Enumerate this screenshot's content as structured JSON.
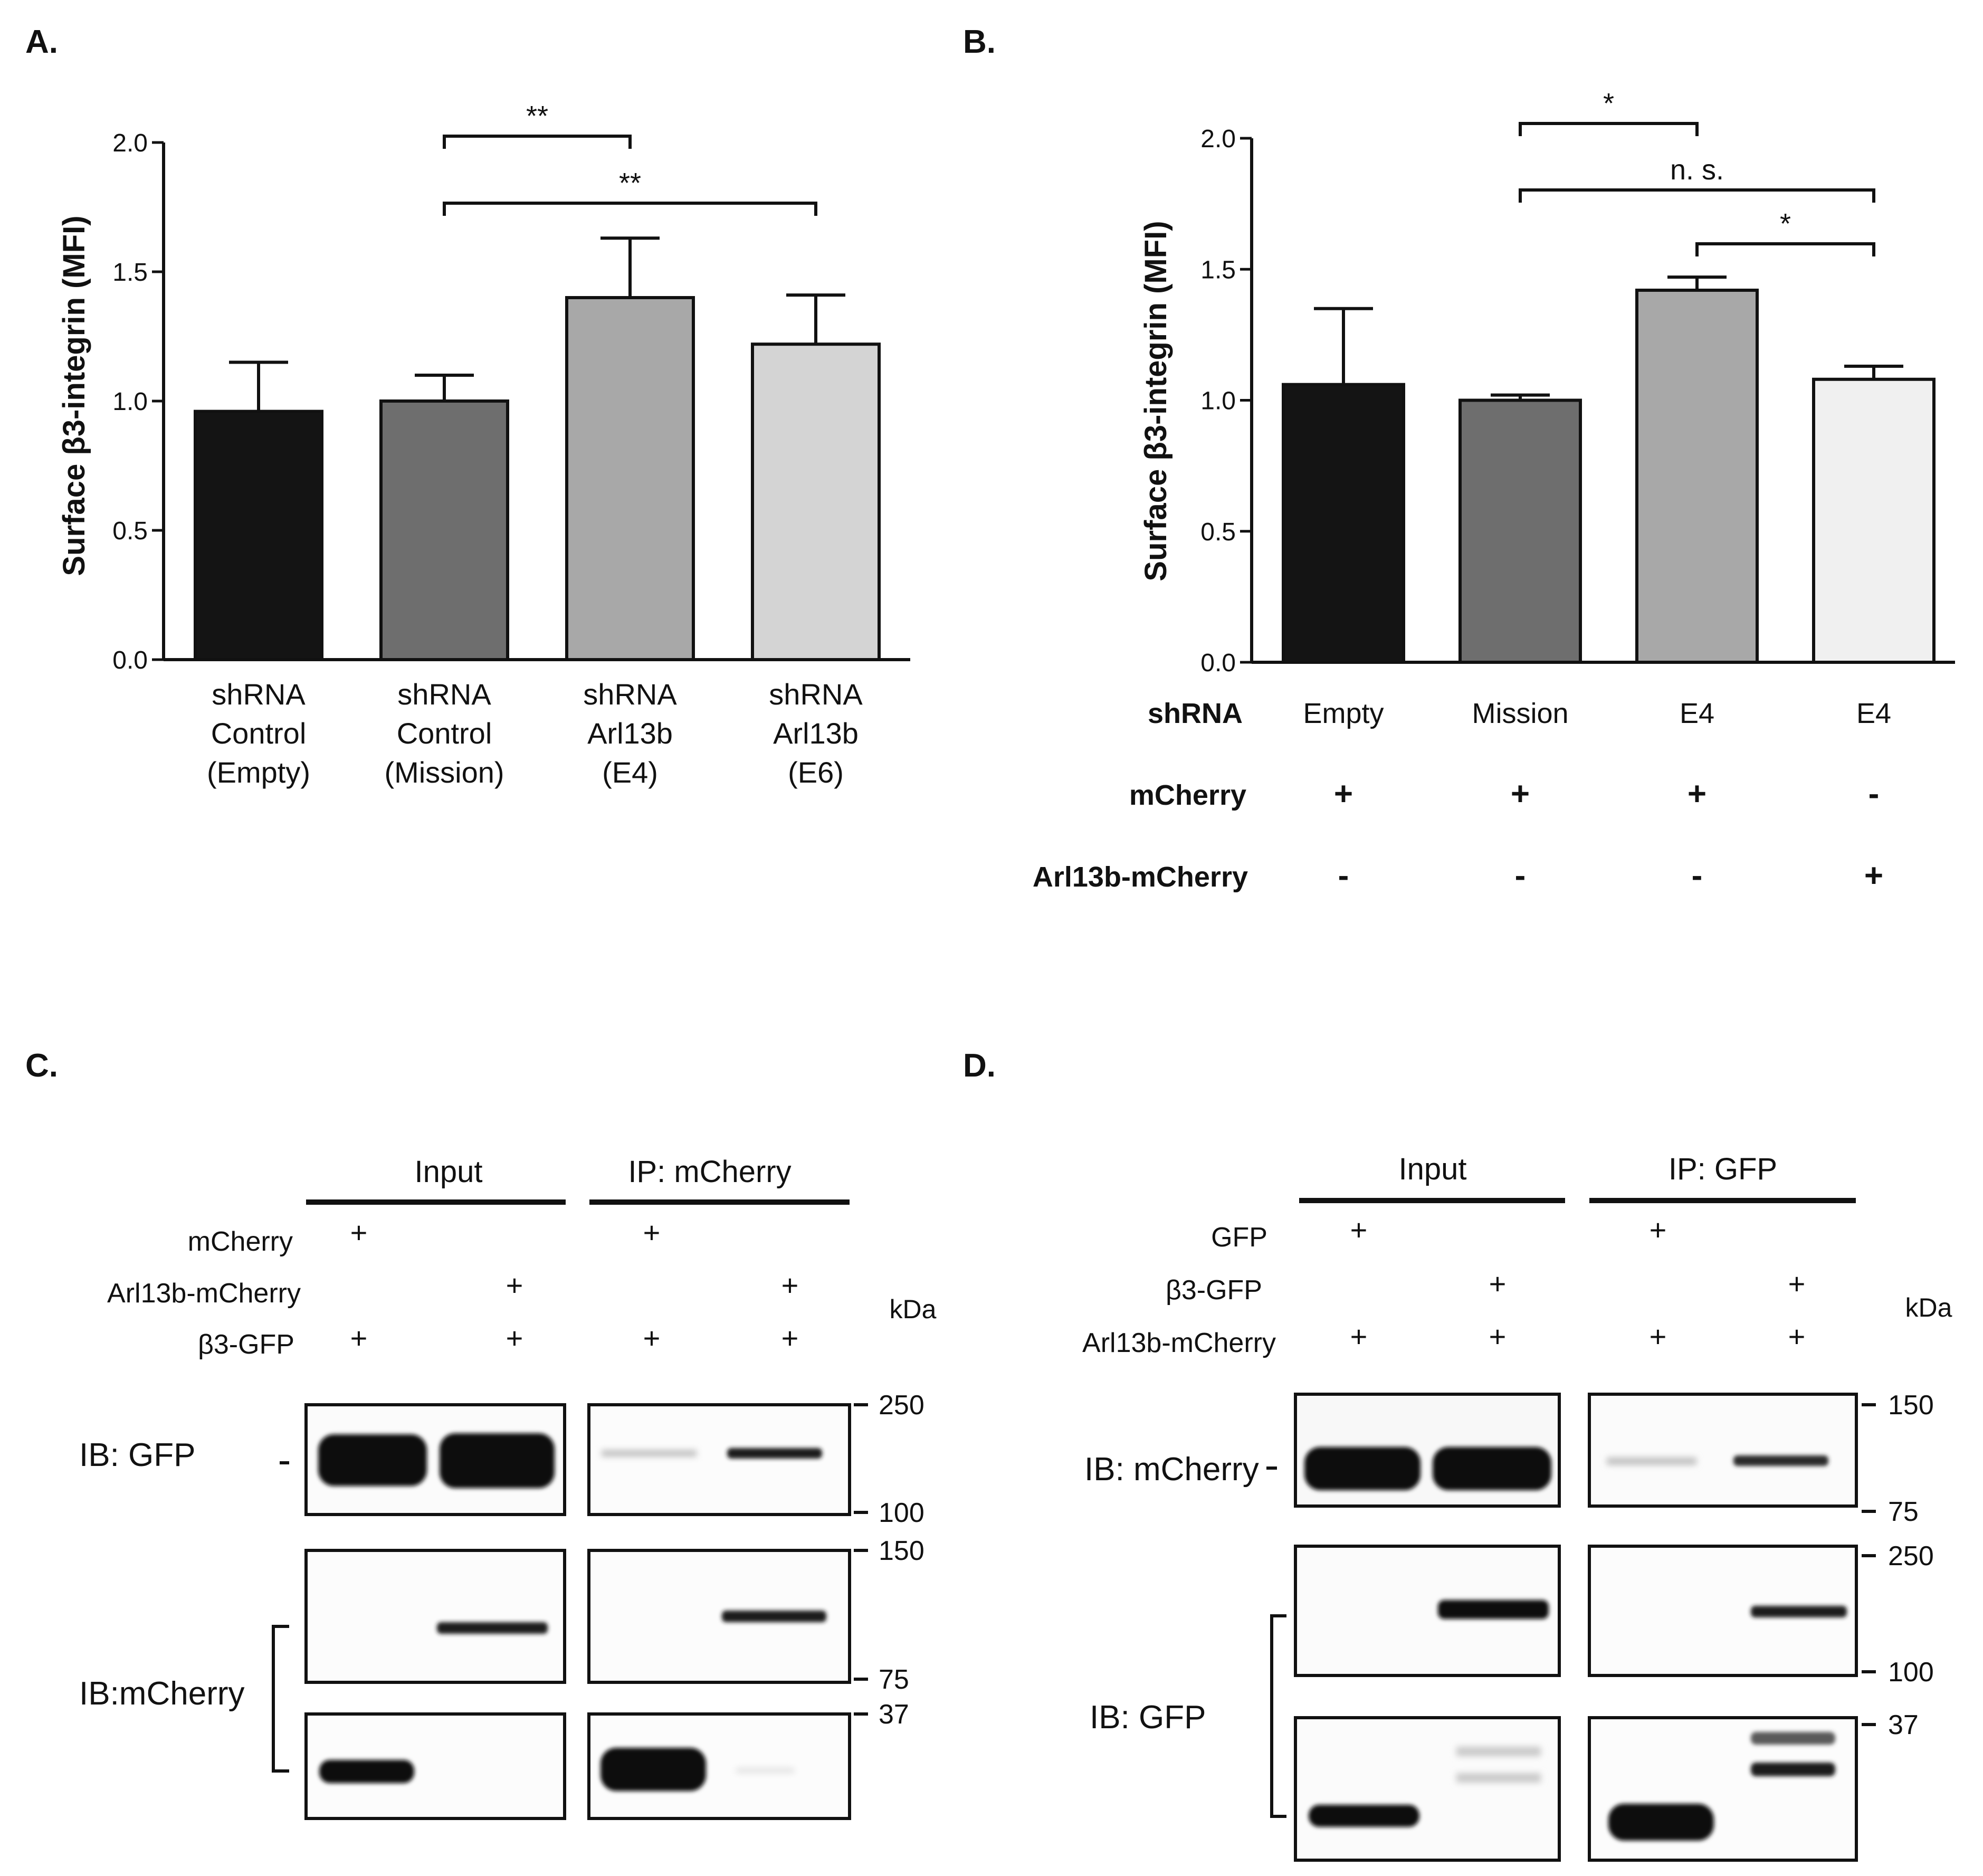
{
  "panels": {
    "A": {
      "letter": "A."
    },
    "B": {
      "letter": "B."
    },
    "C": {
      "letter": "C."
    },
    "D": {
      "letter": "D."
    }
  },
  "chart_data": [
    {
      "panel": "A",
      "type": "bar",
      "ylabel": "Surface β3-integrin (MFI)",
      "ylim": [
        0,
        2.0
      ],
      "yticks": [
        "0.0",
        "0.5",
        "1.0",
        "1.5",
        "2.0"
      ],
      "categories": [
        [
          "shRNA",
          "Control",
          "(Empty)"
        ],
        [
          "shRNA",
          "Control",
          "(Mission)"
        ],
        [
          "shRNA",
          "Arl13b",
          "(E4)"
        ],
        [
          "shRNA",
          "Arl13b",
          "(E6)"
        ]
      ],
      "values": [
        0.96,
        1.0,
        1.4,
        1.22
      ],
      "errors": [
        0.19,
        0.1,
        0.23,
        0.19
      ],
      "bar_colors": [
        "#141414",
        "#6e6e6e",
        "#a8a8a8",
        "#d4d4d4"
      ],
      "significance": [
        {
          "from": 1,
          "to": 2,
          "label": "**"
        },
        {
          "from": 1,
          "to": 3,
          "label": "**"
        }
      ]
    },
    {
      "panel": "B",
      "type": "bar",
      "ylabel": "Surface β3-integrin (MFI)",
      "ylim": [
        0,
        2.0
      ],
      "yticks": [
        "0.0",
        "0.5",
        "1.0",
        "1.5",
        "2.0"
      ],
      "values": [
        1.06,
        1.0,
        1.42,
        1.08
      ],
      "errors": [
        0.29,
        0.02,
        0.05,
        0.05
      ],
      "bar_colors": [
        "#141414",
        "#6e6e6e",
        "#a8a8a8",
        "#f0f0f0"
      ],
      "significance": [
        {
          "from": 1,
          "to": 2,
          "label": "*"
        },
        {
          "from": 1,
          "to": 3,
          "label": "n. s."
        },
        {
          "from": 2,
          "to": 3,
          "label": "*"
        }
      ],
      "condition_table": [
        {
          "label": "shRNA",
          "values": [
            "Empty",
            "Mission",
            "E4",
            "E4"
          ],
          "bold_values": false
        },
        {
          "label": "mCherry",
          "values": [
            "+",
            "+",
            "+",
            "-"
          ],
          "bold_values": true
        },
        {
          "label": "Arl13b-mCherry",
          "values": [
            "-",
            "-",
            "-",
            "+"
          ],
          "bold_values": true
        }
      ]
    }
  ],
  "blot_C": {
    "groups": [
      "Input",
      "IP: mCherry"
    ],
    "kda": "kDa",
    "conditions": [
      {
        "label": "mCherry",
        "values": [
          "+",
          "",
          "+",
          ""
        ]
      },
      {
        "label": "Arl13b-mCherry",
        "values": [
          "",
          "+",
          "",
          "+"
        ]
      },
      {
        "label": "β3-GFP",
        "values": [
          "+",
          "+",
          "+",
          "+"
        ]
      }
    ],
    "ib_labels": [
      "IB:  GFP",
      "IB:mCherry"
    ],
    "markers": [
      "250",
      "100",
      "150",
      "75",
      "37"
    ]
  },
  "blot_D": {
    "groups": [
      "Input",
      "IP: GFP"
    ],
    "kda": "kDa",
    "conditions": [
      {
        "label": "GFP",
        "values": [
          "+",
          "",
          "+",
          ""
        ]
      },
      {
        "label": "β3-GFP",
        "values": [
          "",
          "+",
          "",
          "+"
        ]
      },
      {
        "label": "Arl13b-mCherry",
        "values": [
          "+",
          "+",
          "+",
          "+"
        ]
      }
    ],
    "ib_labels": [
      "IB: mCherry",
      "IB:   GFP"
    ],
    "markers": [
      "150",
      "75",
      "250",
      "100",
      "37"
    ]
  }
}
